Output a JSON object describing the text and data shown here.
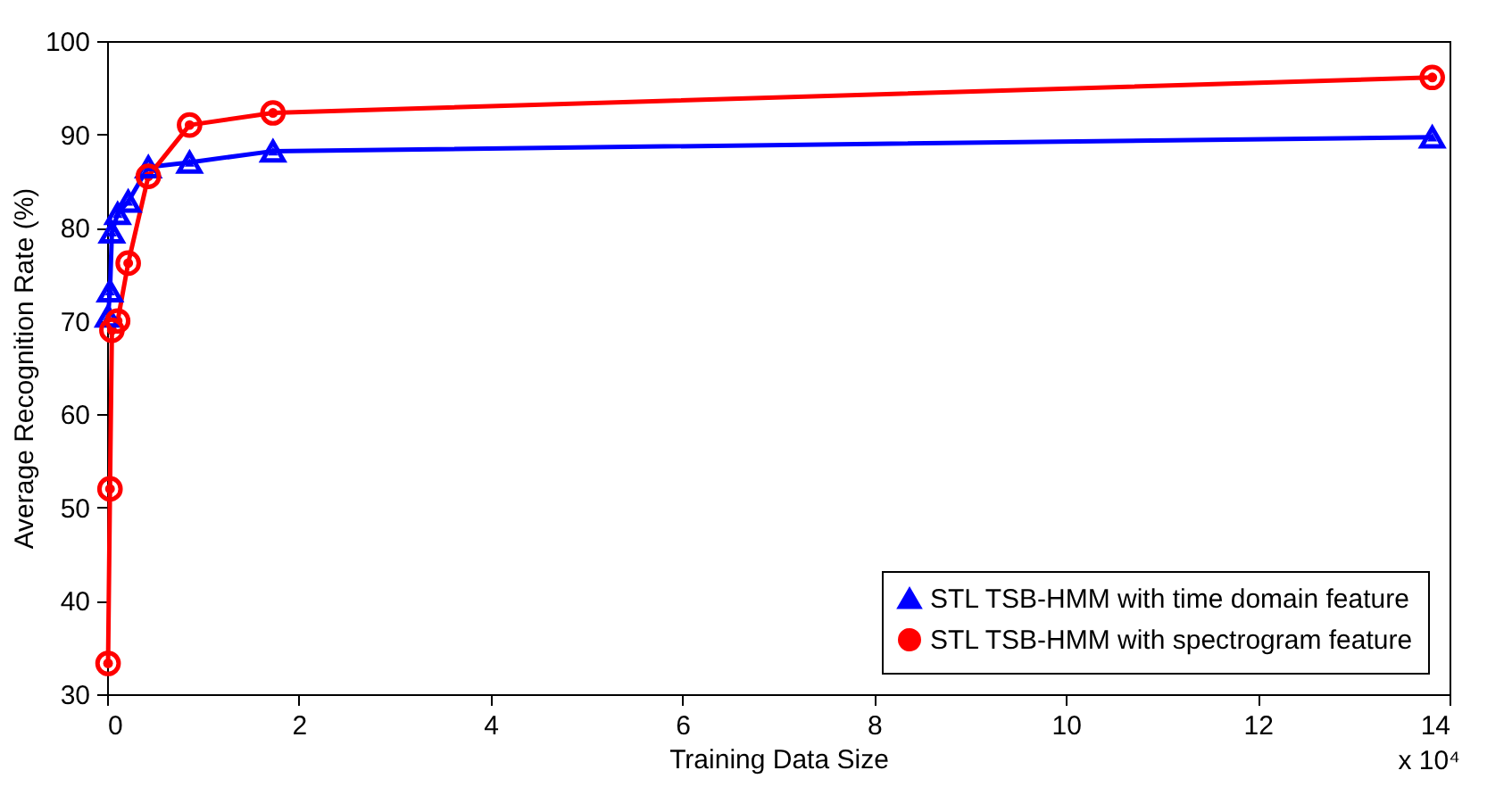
{
  "chart_data": {
    "type": "line",
    "xlabel": "Training Data Size",
    "ylabel": "Average Recognition Rate (%)",
    "annotations": [
      "x 10⁴"
    ],
    "xlim": [
      0,
      14
    ],
    "xticks": [
      0,
      2,
      4,
      6,
      8,
      10,
      12,
      14
    ],
    "ylim": [
      30,
      100
    ],
    "yticks": [
      30,
      40,
      50,
      60,
      70,
      80,
      90,
      100
    ],
    "grid": false,
    "legend": "bottom right",
    "line_style": "solid",
    "series": [
      {
        "name": "STL TSB-HMM with time domain feature",
        "color": "#0000ff",
        "marker": "triangle",
        "x": [
          0.01,
          0.03,
          0.05,
          0.11,
          0.22,
          0.43,
          0.86,
          1.73,
          13.82
        ],
        "values": [
          70.5,
          73.2,
          79.5,
          81.5,
          82.8,
          86.5,
          87,
          88.2,
          89.7
        ]
      },
      {
        "name": "STL TSB-HMM with spectrogram feature",
        "color": "#ff0000",
        "marker": "circle",
        "x": [
          0.01,
          0.03,
          0.05,
          0.11,
          0.22,
          0.43,
          0.86,
          1.73,
          13.82
        ],
        "values": [
          33.3,
          52,
          69,
          70,
          76.2,
          85.5,
          91,
          92.3,
          96.1
        ]
      }
    ]
  }
}
